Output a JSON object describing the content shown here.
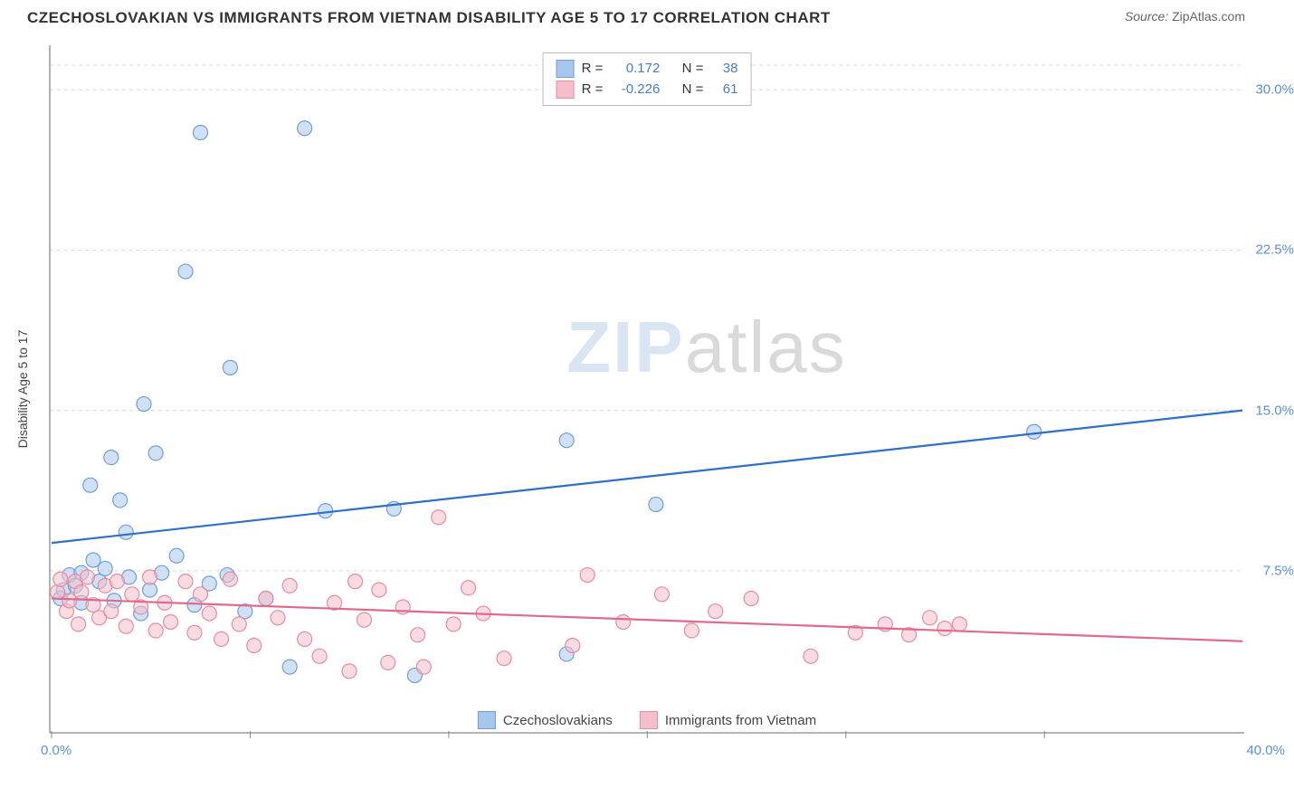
{
  "header": {
    "title": "CZECHOSLOVAKIAN VS IMMIGRANTS FROM VIETNAM DISABILITY AGE 5 TO 17 CORRELATION CHART",
    "source_label": "Source:",
    "source_value": "ZipAtlas.com"
  },
  "watermark": {
    "part1": "ZIP",
    "part2": "atlas"
  },
  "chart": {
    "type": "scatter-with-regression",
    "ylabel": "Disability Age 5 to 17",
    "xlim": [
      0,
      40
    ],
    "ylim": [
      0,
      32
    ],
    "x_ticks": [
      {
        "v": 0,
        "label": "0.0%"
      },
      {
        "v": 40,
        "label": "40.0%"
      }
    ],
    "y_ticks": [
      {
        "v": 7.5,
        "label": "7.5%"
      },
      {
        "v": 15.0,
        "label": "15.0%"
      },
      {
        "v": 22.5,
        "label": "22.5%"
      },
      {
        "v": 30.0,
        "label": "30.0%"
      }
    ],
    "x_minor_step": 6.67,
    "grid_color": "#d9d9d9",
    "axis_color": "#888888",
    "background_color": "#ffffff",
    "marker_radius": 8,
    "marker_opacity": 0.55,
    "line_width": 2.2,
    "series": [
      {
        "key": "czech",
        "label": "Czechoslovakians",
        "color_fill": "#a9c6ec",
        "color_stroke": "#6f9fd8",
        "line_color": "#2e6fc7",
        "R": "0.172",
        "N": "38",
        "regression": {
          "x1": 0,
          "y1": 8.8,
          "x2": 40,
          "y2": 15.0
        },
        "points": [
          [
            0.3,
            6.2
          ],
          [
            0.4,
            6.6
          ],
          [
            0.6,
            7.3
          ],
          [
            0.8,
            6.8
          ],
          [
            1.0,
            6.0
          ],
          [
            1.0,
            7.4
          ],
          [
            1.3,
            11.5
          ],
          [
            1.4,
            8.0
          ],
          [
            1.6,
            7.0
          ],
          [
            1.8,
            7.6
          ],
          [
            2.0,
            12.8
          ],
          [
            2.1,
            6.1
          ],
          [
            2.3,
            10.8
          ],
          [
            2.5,
            9.3
          ],
          [
            2.6,
            7.2
          ],
          [
            3.0,
            5.5
          ],
          [
            3.1,
            15.3
          ],
          [
            3.3,
            6.6
          ],
          [
            3.5,
            13.0
          ],
          [
            3.7,
            7.4
          ],
          [
            4.2,
            8.2
          ],
          [
            4.5,
            21.5
          ],
          [
            4.8,
            5.9
          ],
          [
            5.0,
            28.0
          ],
          [
            5.3,
            6.9
          ],
          [
            5.9,
            7.3
          ],
          [
            6.0,
            17.0
          ],
          [
            6.5,
            5.6
          ],
          [
            7.2,
            6.2
          ],
          [
            8.0,
            3.0
          ],
          [
            8.5,
            28.2
          ],
          [
            9.2,
            10.3
          ],
          [
            11.5,
            10.4
          ],
          [
            12.2,
            2.6
          ],
          [
            17.3,
            13.6
          ],
          [
            17.3,
            3.6
          ],
          [
            20.3,
            10.6
          ],
          [
            33.0,
            14.0
          ]
        ]
      },
      {
        "key": "vietnam",
        "label": "Immigrants from Vietnam",
        "color_fill": "#f4bfcb",
        "color_stroke": "#e88aa2",
        "line_color": "#e06a8a",
        "R": "-0.226",
        "N": "61",
        "regression": {
          "x1": 0,
          "y1": 6.2,
          "x2": 40,
          "y2": 4.2
        },
        "points": [
          [
            0.2,
            6.5
          ],
          [
            0.3,
            7.1
          ],
          [
            0.5,
            5.6
          ],
          [
            0.6,
            6.1
          ],
          [
            0.8,
            7.0
          ],
          [
            0.9,
            5.0
          ],
          [
            1.0,
            6.5
          ],
          [
            1.2,
            7.2
          ],
          [
            1.4,
            5.9
          ],
          [
            1.6,
            5.3
          ],
          [
            1.8,
            6.8
          ],
          [
            2.0,
            5.6
          ],
          [
            2.2,
            7.0
          ],
          [
            2.5,
            4.9
          ],
          [
            2.7,
            6.4
          ],
          [
            3.0,
            5.8
          ],
          [
            3.3,
            7.2
          ],
          [
            3.5,
            4.7
          ],
          [
            3.8,
            6.0
          ],
          [
            4.0,
            5.1
          ],
          [
            4.5,
            7.0
          ],
          [
            4.8,
            4.6
          ],
          [
            5.0,
            6.4
          ],
          [
            5.3,
            5.5
          ],
          [
            5.7,
            4.3
          ],
          [
            6.0,
            7.1
          ],
          [
            6.3,
            5.0
          ],
          [
            6.8,
            4.0
          ],
          [
            7.2,
            6.2
          ],
          [
            7.6,
            5.3
          ],
          [
            8.0,
            6.8
          ],
          [
            8.5,
            4.3
          ],
          [
            9.0,
            3.5
          ],
          [
            9.5,
            6.0
          ],
          [
            10.0,
            2.8
          ],
          [
            10.2,
            7.0
          ],
          [
            10.5,
            5.2
          ],
          [
            11.0,
            6.6
          ],
          [
            11.3,
            3.2
          ],
          [
            11.8,
            5.8
          ],
          [
            12.3,
            4.5
          ],
          [
            12.5,
            3.0
          ],
          [
            13.0,
            10.0
          ],
          [
            13.5,
            5.0
          ],
          [
            14.0,
            6.7
          ],
          [
            14.5,
            5.5
          ],
          [
            15.2,
            3.4
          ],
          [
            17.5,
            4.0
          ],
          [
            18.0,
            7.3
          ],
          [
            19.2,
            5.1
          ],
          [
            20.5,
            6.4
          ],
          [
            21.5,
            4.7
          ],
          [
            22.3,
            5.6
          ],
          [
            23.5,
            6.2
          ],
          [
            25.5,
            3.5
          ],
          [
            27.0,
            4.6
          ],
          [
            28.0,
            5.0
          ],
          [
            28.8,
            4.5
          ],
          [
            29.5,
            5.3
          ],
          [
            30.0,
            4.8
          ],
          [
            30.5,
            5.0
          ]
        ]
      }
    ],
    "stats_labels": {
      "R": "R =",
      "N": "N ="
    }
  }
}
